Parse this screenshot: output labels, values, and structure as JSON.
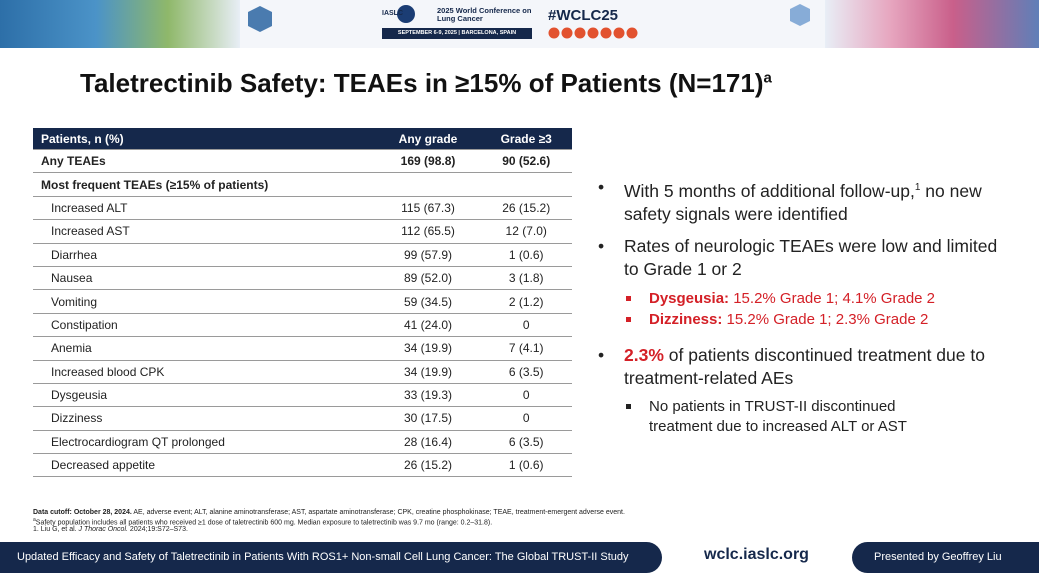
{
  "header": {
    "organization": "IASLC",
    "conference_name": "2025 World Conference on Lung Cancer",
    "dates": "SEPTEMBER 6-9, 2025 | BARCELONA, SPAIN",
    "hashtag": "#WCLC25"
  },
  "title": {
    "text": "Taletrectinib Safety: TEAEs in ≥15% of Patients (N=171)",
    "superscript": "a"
  },
  "table": {
    "columns": [
      "Patients, n (%)",
      "Any grade",
      "Grade ≥3"
    ],
    "summary_row": [
      "Any TEAEs",
      "169 (98.8)",
      "90 (52.6)"
    ],
    "section_label": "Most frequent TEAEs (≥15% of patients)",
    "rows": [
      [
        "Increased ALT",
        "115 (67.3)",
        "26 (15.2)"
      ],
      [
        "Increased AST",
        "112 (65.5)",
        "12 (7.0)"
      ],
      [
        "Diarrhea",
        "99 (57.9)",
        "1 (0.6)"
      ],
      [
        "Nausea",
        "89 (52.0)",
        "3 (1.8)"
      ],
      [
        "Vomiting",
        "59 (34.5)",
        "2 (1.2)"
      ],
      [
        "Constipation",
        "41 (24.0)",
        "0"
      ],
      [
        "Anemia",
        "34 (19.9)",
        "7 (4.1)"
      ],
      [
        "Increased blood CPK",
        "34 (19.9)",
        "6 (3.5)"
      ],
      [
        "Dysgeusia",
        "33 (19.3)",
        "0"
      ],
      [
        "Dizziness",
        "30 (17.5)",
        "0"
      ],
      [
        "Electrocardiogram QT prolonged",
        "28 (16.4)",
        "6 (3.5)"
      ],
      [
        "Decreased appetite",
        "26 (15.2)",
        "1 (0.6)"
      ]
    ]
  },
  "bullets": [
    {
      "text_before": "With 5 months of additional follow-up,",
      "reference": "1",
      "text_after": "no new safety signals were identified"
    },
    {
      "text": "Rates of neurologic TEAEs were low and limited to Grade 1 or 2",
      "sub": [
        {
          "label": "Dysgeusia:",
          "text": "15.2% Grade 1; 4.1% Grade 2"
        },
        {
          "label": "Dizziness:",
          "text": "15.2% Grade 1; 2.3% Grade 2"
        }
      ]
    },
    {
      "highlight": "2.3%",
      "text": "of patients discontinued treatment due to treatment-related AEs",
      "sub": [
        {
          "text": "No patients in TRUST-II discontinued treatment due to increased ALT or AST"
        }
      ]
    }
  ],
  "footnotes": {
    "cutoff": "Data cutoff: October 28, 2024.",
    "abbreviations": "AE, adverse event; ALT, alanine aminotransferase; AST, aspartate aminotransferase; CPK, creatine phosphokinase; TEAE, treatment-emergent adverse event.",
    "safety_marker": "a",
    "safety_note": "Safety population includes all patients who received ≥1 dose of taletrectinib 600 mg. Median exposure to taletrectinib was 9.7 mo (range: 0.2–31.8).",
    "reference_number": "1.",
    "reference_authors": "Liu G, et al.",
    "reference_journal": "J Thorac Oncol.",
    "reference_details": "2024;19:S72–S73."
  },
  "footer": {
    "study_title": "Updated Efficacy and Safety of Taletrectinib in Patients With ROS1+ Non-small Cell Lung Cancer: The Global TRUST-II Study",
    "website": "wclc.iaslc.org",
    "presenter": "Presented by Geoffrey Liu"
  }
}
